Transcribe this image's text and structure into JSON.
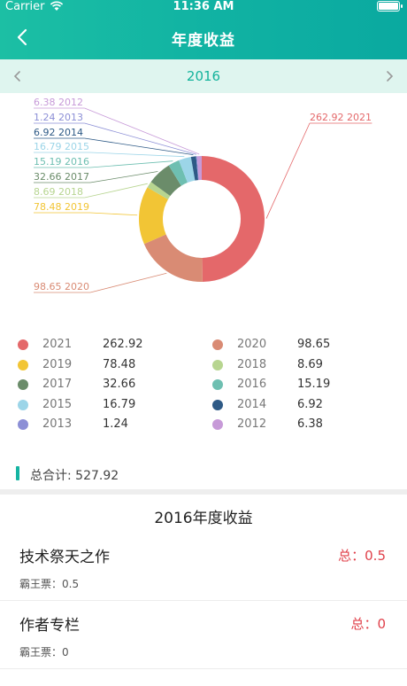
{
  "status_bar": {
    "carrier": "Carrier",
    "time": "11:36 AM"
  },
  "nav": {
    "title": "年度收益"
  },
  "year_selector": {
    "year": "2016"
  },
  "chart_data": {
    "type": "pie",
    "title": "",
    "slices": [
      {
        "label": "2021",
        "value": 262.92,
        "color": "#e4686a"
      },
      {
        "label": "2020",
        "value": 98.65,
        "color": "#d98b74"
      },
      {
        "label": "2019",
        "value": 78.48,
        "color": "#f2c535"
      },
      {
        "label": "2018",
        "value": 8.69,
        "color": "#b7d590"
      },
      {
        "label": "2017",
        "value": 32.66,
        "color": "#6b8c6a"
      },
      {
        "label": "2016",
        "value": 15.19,
        "color": "#6ebfb1"
      },
      {
        "label": "2015",
        "value": 16.79,
        "color": "#9cd5e8"
      },
      {
        "label": "2014",
        "value": 6.92,
        "color": "#2e5a86"
      },
      {
        "label": "2013",
        "value": 1.24,
        "color": "#8c8fd6"
      },
      {
        "label": "2012",
        "value": 6.38,
        "color": "#c79ad8"
      }
    ],
    "slice_labels": {
      "2021": "262.92 2021",
      "2020": "98.65 2020",
      "2019": "78.48 2019",
      "2018": "8.69 2018",
      "2017": "32.66 2017",
      "2016": "15.19 2016",
      "2015": "16.79 2015",
      "2014": "6.92 2014",
      "2013": "1.24 2013",
      "2012": "6.38 2012"
    }
  },
  "legend": [
    {
      "year": "2021",
      "value": "262.92",
      "color": "#e4686a"
    },
    {
      "year": "2020",
      "value": "98.65",
      "color": "#d98b74"
    },
    {
      "year": "2019",
      "value": "78.48",
      "color": "#f2c535"
    },
    {
      "year": "2018",
      "value": "8.69",
      "color": "#b7d590"
    },
    {
      "year": "2017",
      "value": "32.66",
      "color": "#6b8c6a"
    },
    {
      "year": "2016",
      "value": "15.19",
      "color": "#6ebfb1"
    },
    {
      "year": "2015",
      "value": "16.79",
      "color": "#9cd5e8"
    },
    {
      "year": "2014",
      "value": "6.92",
      "color": "#2e5a86"
    },
    {
      "year": "2013",
      "value": "1.24",
      "color": "#8c8fd6"
    },
    {
      "year": "2012",
      "value": "6.38",
      "color": "#c79ad8"
    }
  ],
  "total": {
    "label": "总合计: 527.92"
  },
  "section": {
    "title": "2016年度收益"
  },
  "works": [
    {
      "name": "技术祭天之作",
      "total": "总：0.5",
      "sub": "霸王票：0.5"
    },
    {
      "name": "作者专栏",
      "total": "总：0",
      "sub": "霸王票：0"
    }
  ]
}
